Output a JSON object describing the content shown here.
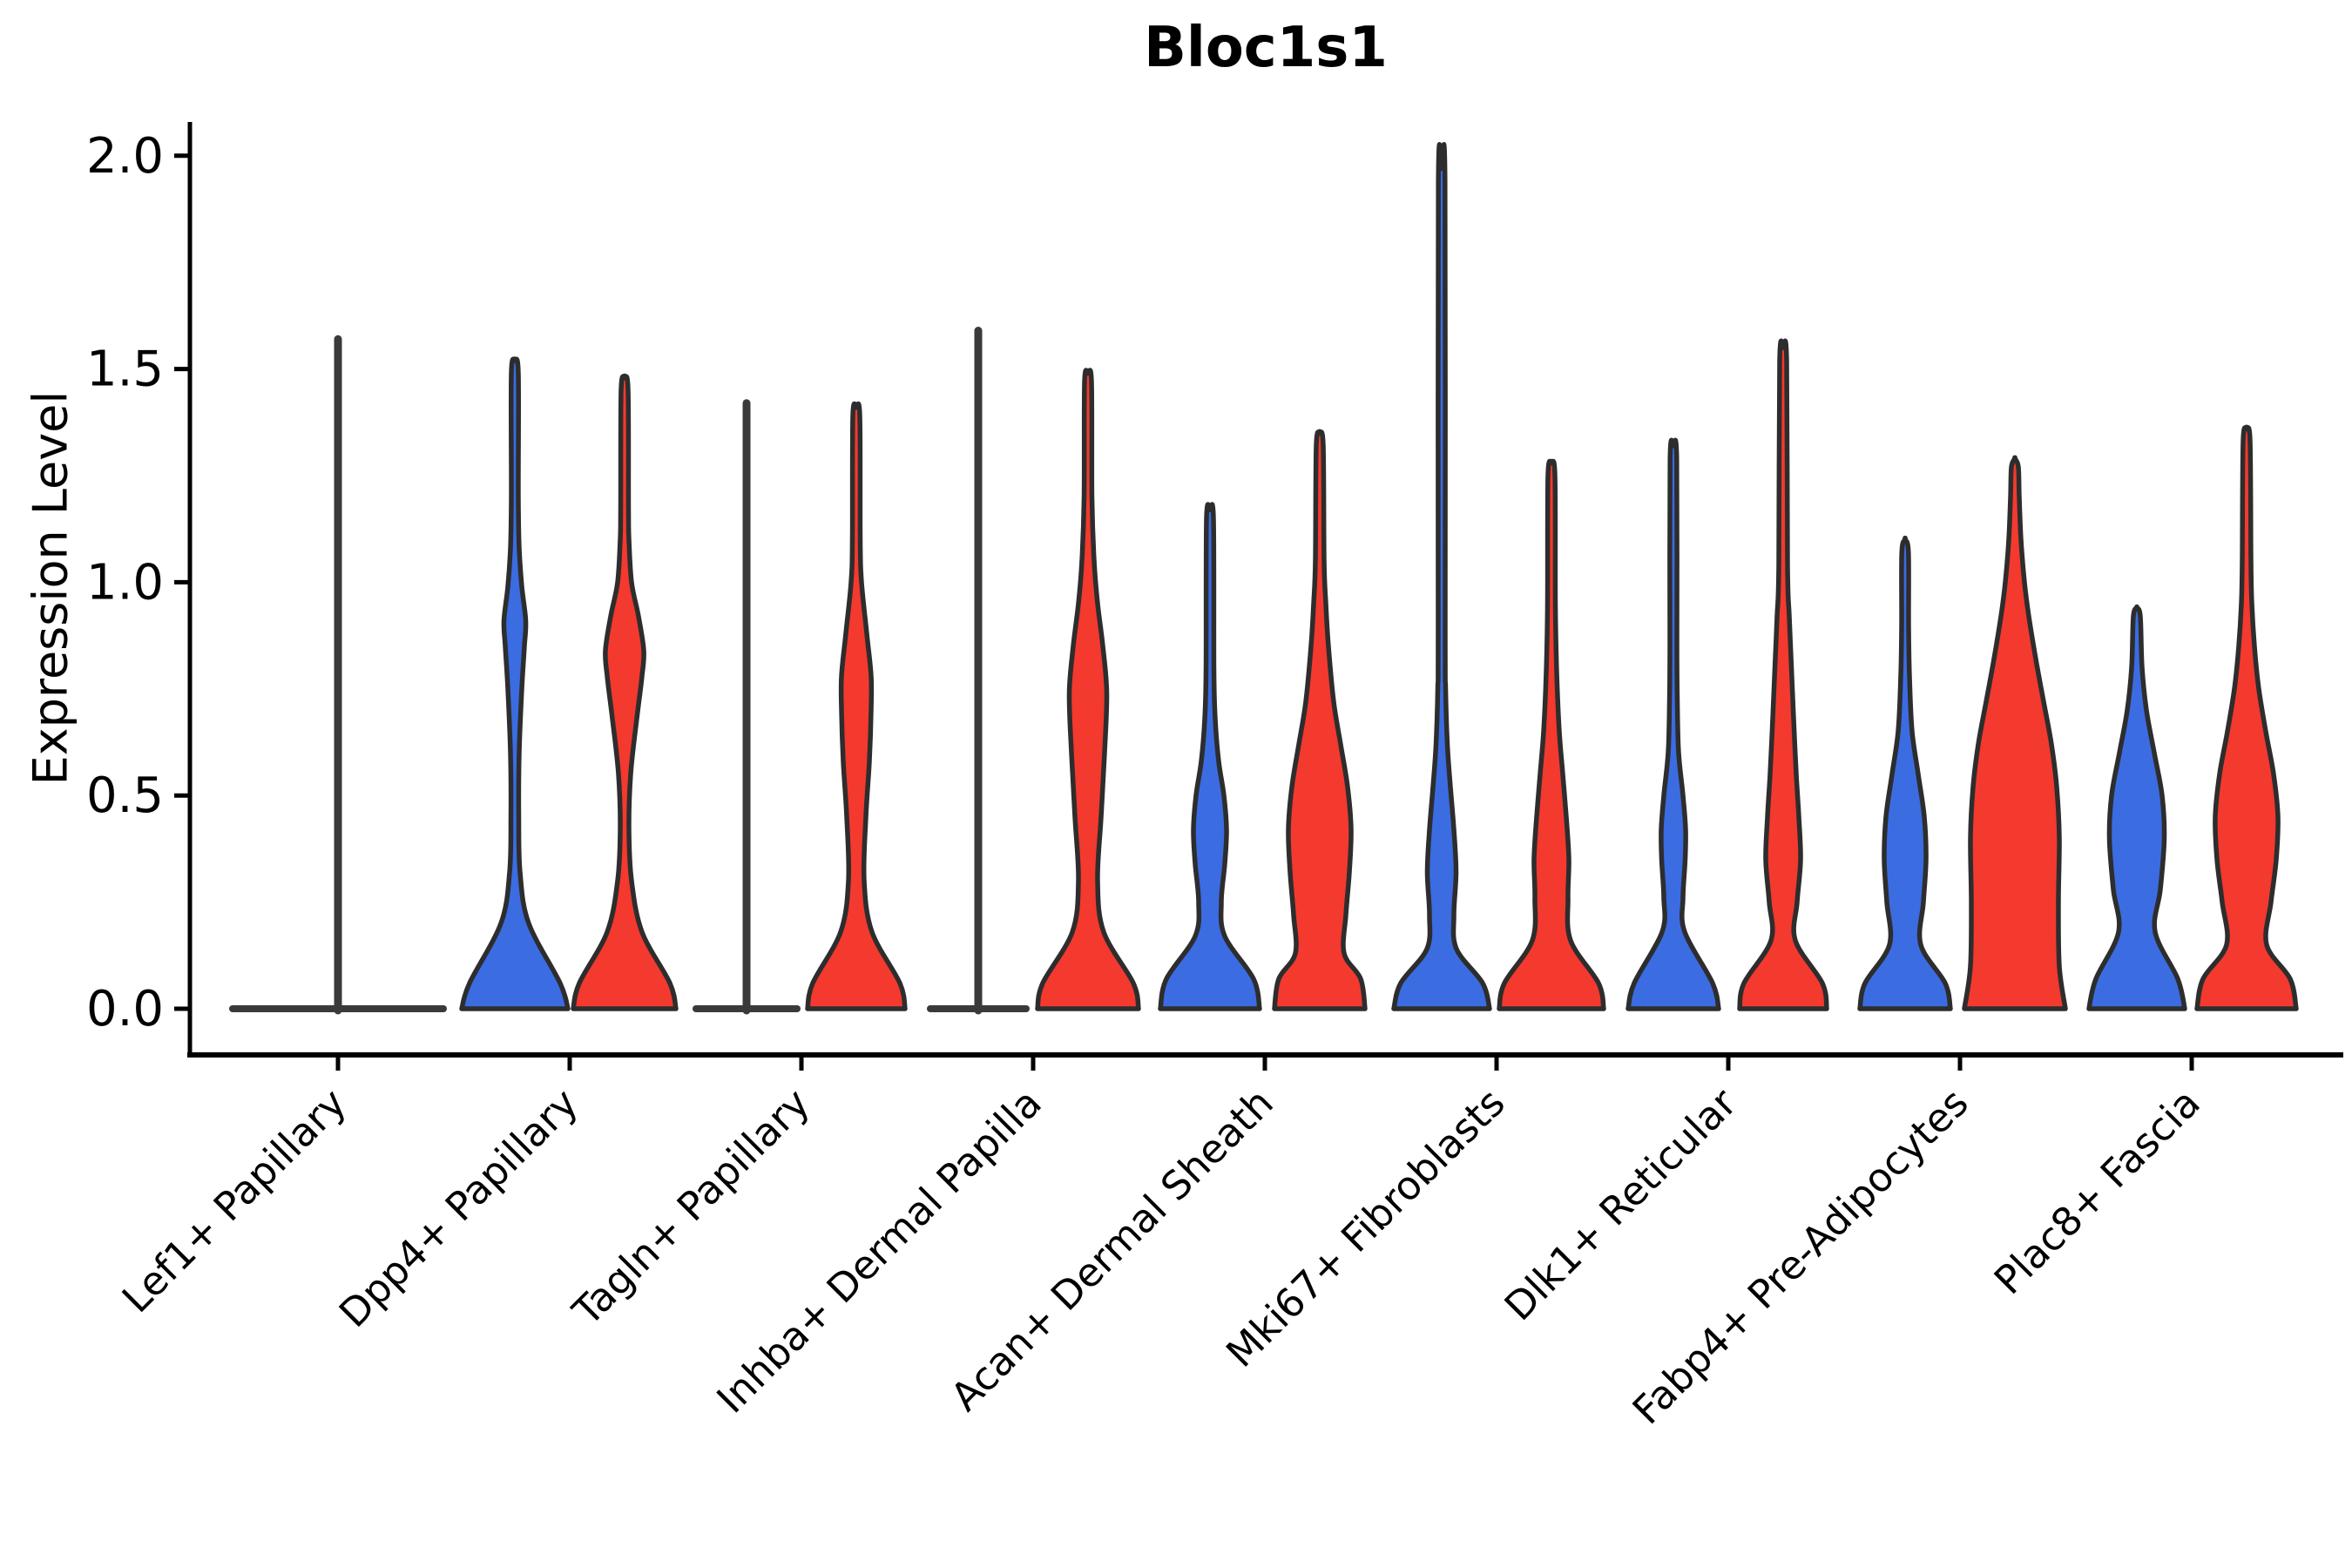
{
  "chart_data": {
    "type": "violin",
    "title": "Bloc1s1",
    "ylabel": "Expression Level",
    "yticks": [
      "0.0",
      "0.5",
      "1.0",
      "1.5",
      "2.0"
    ],
    "ytick_values": [
      0.0,
      0.5,
      1.0,
      1.5,
      2.0
    ],
    "ylim": [
      -0.11,
      2.09
    ],
    "grid": false,
    "legend": "none",
    "x_label_rotation_deg": 45,
    "categories": [
      "Lef1+ Papillary",
      "Dpp4+ Papillary",
      "Tagln+ Papillary",
      "Inhba+ Dermal Papilla",
      "Acan+ Dermal Sheath",
      "Mki67+ Fibroblasts",
      "Dlk1+ Reticular",
      "Fabp4+ Pre-Adipocytes",
      "Plac8+ Fascia"
    ],
    "colors": {
      "blue": "#3b6ce1",
      "red": "#f4392f",
      "single": "#3a3a3a",
      "outline": "#2d2d2d"
    },
    "violins": [
      {
        "category": "Lef1+ Papillary",
        "split": "single",
        "flat": true,
        "max": 1.57,
        "base_halfwidth": 121,
        "profile": [
          [
            0,
            121
          ]
        ]
      },
      {
        "category": "Dpp4+ Papillary",
        "split": "blue",
        "flat": false,
        "max": 1.52,
        "profile": [
          [
            0,
            61
          ],
          [
            0.06,
            52
          ],
          [
            0.2,
            16
          ],
          [
            0.32,
            6
          ],
          [
            0.45,
            4.5
          ],
          [
            0.6,
            5
          ],
          [
            0.75,
            8
          ],
          [
            0.85,
            11
          ],
          [
            0.91,
            12.5
          ],
          [
            0.99,
            8
          ],
          [
            1.08,
            5
          ],
          [
            1.2,
            4
          ],
          [
            1.49,
            4
          ],
          [
            1.52,
            0
          ]
        ]
      },
      {
        "category": "Dpp4+ Papillary",
        "split": "red",
        "flat": false,
        "max": 1.48,
        "profile": [
          [
            0,
            59
          ],
          [
            0.06,
            52
          ],
          [
            0.18,
            20
          ],
          [
            0.3,
            8
          ],
          [
            0.42,
            5
          ],
          [
            0.55,
            7
          ],
          [
            0.68,
            14
          ],
          [
            0.78,
            20
          ],
          [
            0.84,
            22
          ],
          [
            0.92,
            16
          ],
          [
            1.0,
            8
          ],
          [
            1.1,
            5
          ],
          [
            1.17,
            4.5
          ],
          [
            1.45,
            4
          ],
          [
            1.48,
            0
          ]
        ]
      },
      {
        "category": "Tagln+ Papillary",
        "split": "blue",
        "flat": true,
        "max": 1.42,
        "base_halfwidth": 58,
        "profile": [
          [
            0,
            58
          ]
        ]
      },
      {
        "category": "Tagln+ Papillary",
        "split": "red",
        "flat": false,
        "max": 1.41,
        "profile": [
          [
            0,
            56
          ],
          [
            0.06,
            50
          ],
          [
            0.18,
            18
          ],
          [
            0.3,
            9
          ],
          [
            0.45,
            11
          ],
          [
            0.58,
            15
          ],
          [
            0.7,
            17
          ],
          [
            0.78,
            17
          ],
          [
            0.88,
            12
          ],
          [
            1.0,
            6
          ],
          [
            1.1,
            4.5
          ],
          [
            1.39,
            4
          ],
          [
            1.41,
            0
          ]
        ]
      },
      {
        "category": "Inhba+ Dermal Papilla",
        "split": "blue",
        "flat": true,
        "max": 1.59,
        "base_halfwidth": 55,
        "profile": [
          [
            0,
            55
          ]
        ]
      },
      {
        "category": "Inhba+ Dermal Papilla",
        "split": "red",
        "flat": false,
        "max": 1.49,
        "profile": [
          [
            0,
            58
          ],
          [
            0.06,
            52
          ],
          [
            0.18,
            18
          ],
          [
            0.3,
            11
          ],
          [
            0.45,
            15
          ],
          [
            0.6,
            19
          ],
          [
            0.74,
            21.5
          ],
          [
            0.85,
            17
          ],
          [
            0.95,
            11
          ],
          [
            1.05,
            7
          ],
          [
            1.2,
            4.5
          ],
          [
            1.47,
            4
          ],
          [
            1.49,
            0
          ]
        ]
      },
      {
        "category": "Acan+ Dermal Sheath",
        "split": "blue",
        "flat": false,
        "max": 1.17,
        "profile": [
          [
            0,
            57
          ],
          [
            0.07,
            50
          ],
          [
            0.17,
            17
          ],
          [
            0.25,
            13
          ],
          [
            0.34,
            17
          ],
          [
            0.42,
            19
          ],
          [
            0.5,
            16
          ],
          [
            0.58,
            10
          ],
          [
            0.68,
            6
          ],
          [
            0.8,
            4.5
          ],
          [
            1.15,
            4
          ],
          [
            1.17,
            0
          ]
        ]
      },
      {
        "category": "Acan+ Dermal Sheath",
        "split": "red",
        "flat": false,
        "max": 1.35,
        "profile": [
          [
            0,
            52
          ],
          [
            0.07,
            47
          ],
          [
            0.13,
            28
          ],
          [
            0.22,
            30
          ],
          [
            0.32,
            34
          ],
          [
            0.42,
            36
          ],
          [
            0.52,
            32
          ],
          [
            0.62,
            24
          ],
          [
            0.72,
            16
          ],
          [
            0.85,
            10
          ],
          [
            0.95,
            7
          ],
          [
            1.05,
            5
          ],
          [
            1.32,
            4
          ],
          [
            1.35,
            0
          ]
        ]
      },
      {
        "category": "Mki67+ Fibroblasts",
        "split": "blue",
        "flat": false,
        "max": 1.97,
        "profile": [
          [
            0,
            55
          ],
          [
            0.06,
            47
          ],
          [
            0.14,
            17
          ],
          [
            0.22,
            14
          ],
          [
            0.32,
            16.5
          ],
          [
            0.42,
            14
          ],
          [
            0.52,
            10
          ],
          [
            0.62,
            6.5
          ],
          [
            0.75,
            4.5
          ],
          [
            0.9,
            4
          ],
          [
            1.94,
            3.8
          ],
          [
            1.97,
            0
          ]
        ]
      },
      {
        "category": "Mki67+ Fibroblasts",
        "split": "red",
        "flat": false,
        "max": 1.28,
        "profile": [
          [
            0,
            60
          ],
          [
            0.06,
            54
          ],
          [
            0.16,
            22
          ],
          [
            0.26,
            19
          ],
          [
            0.35,
            20
          ],
          [
            0.45,
            17
          ],
          [
            0.55,
            13
          ],
          [
            0.65,
            9
          ],
          [
            0.79,
            6
          ],
          [
            0.95,
            4.5
          ],
          [
            1.25,
            4
          ],
          [
            1.28,
            0
          ]
        ]
      },
      {
        "category": "Dlk1+ Reticular",
        "split": "blue",
        "flat": false,
        "max": 1.32,
        "profile": [
          [
            0,
            52
          ],
          [
            0.06,
            45
          ],
          [
            0.18,
            13
          ],
          [
            0.26,
            11
          ],
          [
            0.35,
            13.5
          ],
          [
            0.42,
            14
          ],
          [
            0.5,
            11
          ],
          [
            0.6,
            6
          ],
          [
            0.72,
            4.5
          ],
          [
            0.85,
            4
          ],
          [
            1.29,
            3.8
          ],
          [
            1.32,
            0
          ]
        ]
      },
      {
        "category": "Dlk1+ Reticular",
        "split": "red",
        "flat": false,
        "max": 1.55,
        "profile": [
          [
            0,
            50
          ],
          [
            0.06,
            45
          ],
          [
            0.16,
            14
          ],
          [
            0.25,
            16
          ],
          [
            0.35,
            20
          ],
          [
            0.45,
            18
          ],
          [
            0.55,
            15
          ],
          [
            0.68,
            12
          ],
          [
            0.8,
            9.5
          ],
          [
            0.92,
            7
          ],
          [
            1.04,
            5
          ],
          [
            1.52,
            4
          ],
          [
            1.55,
            0
          ]
        ]
      },
      {
        "category": "Fabp4+ Pre-Adipocytes",
        "split": "blue",
        "flat": false,
        "max": 1.1,
        "profile": [
          [
            0,
            52
          ],
          [
            0.06,
            46
          ],
          [
            0.15,
            18
          ],
          [
            0.25,
            21
          ],
          [
            0.35,
            24
          ],
          [
            0.45,
            22
          ],
          [
            0.55,
            15
          ],
          [
            0.65,
            8
          ],
          [
            0.78,
            5
          ],
          [
            0.9,
            4
          ],
          [
            1.07,
            3.8
          ],
          [
            1.1,
            0
          ]
        ]
      },
      {
        "category": "Fabp4+ Pre-Adipocytes",
        "split": "red",
        "flat": false,
        "max": 1.29,
        "profile": [
          [
            0,
            58
          ],
          [
            0.1,
            51
          ],
          [
            0.25,
            50
          ],
          [
            0.4,
            51
          ],
          [
            0.52,
            48
          ],
          [
            0.62,
            42
          ],
          [
            0.72,
            33
          ],
          [
            0.82,
            24
          ],
          [
            0.92,
            16
          ],
          [
            1.0,
            11
          ],
          [
            1.1,
            7
          ],
          [
            1.2,
            5
          ],
          [
            1.27,
            4
          ],
          [
            1.29,
            0
          ]
        ]
      },
      {
        "category": "Plac8+ Fascia",
        "split": "blue",
        "flat": false,
        "max": 0.94,
        "profile": [
          [
            0,
            55
          ],
          [
            0.07,
            47
          ],
          [
            0.18,
            21
          ],
          [
            0.28,
            27
          ],
          [
            0.4,
            31.5
          ],
          [
            0.5,
            29
          ],
          [
            0.6,
            20
          ],
          [
            0.7,
            11
          ],
          [
            0.8,
            6
          ],
          [
            0.92,
            4
          ],
          [
            0.94,
            0
          ]
        ]
      },
      {
        "category": "Plac8+ Fascia",
        "split": "red",
        "flat": false,
        "max": 1.36,
        "profile": [
          [
            0,
            57
          ],
          [
            0.07,
            50
          ],
          [
            0.15,
            23
          ],
          [
            0.25,
            28
          ],
          [
            0.35,
            34
          ],
          [
            0.45,
            36
          ],
          [
            0.55,
            31
          ],
          [
            0.65,
            22
          ],
          [
            0.75,
            14
          ],
          [
            0.85,
            9
          ],
          [
            0.95,
            6
          ],
          [
            1.05,
            5
          ],
          [
            1.33,
            4
          ],
          [
            1.36,
            0
          ]
        ]
      }
    ]
  }
}
